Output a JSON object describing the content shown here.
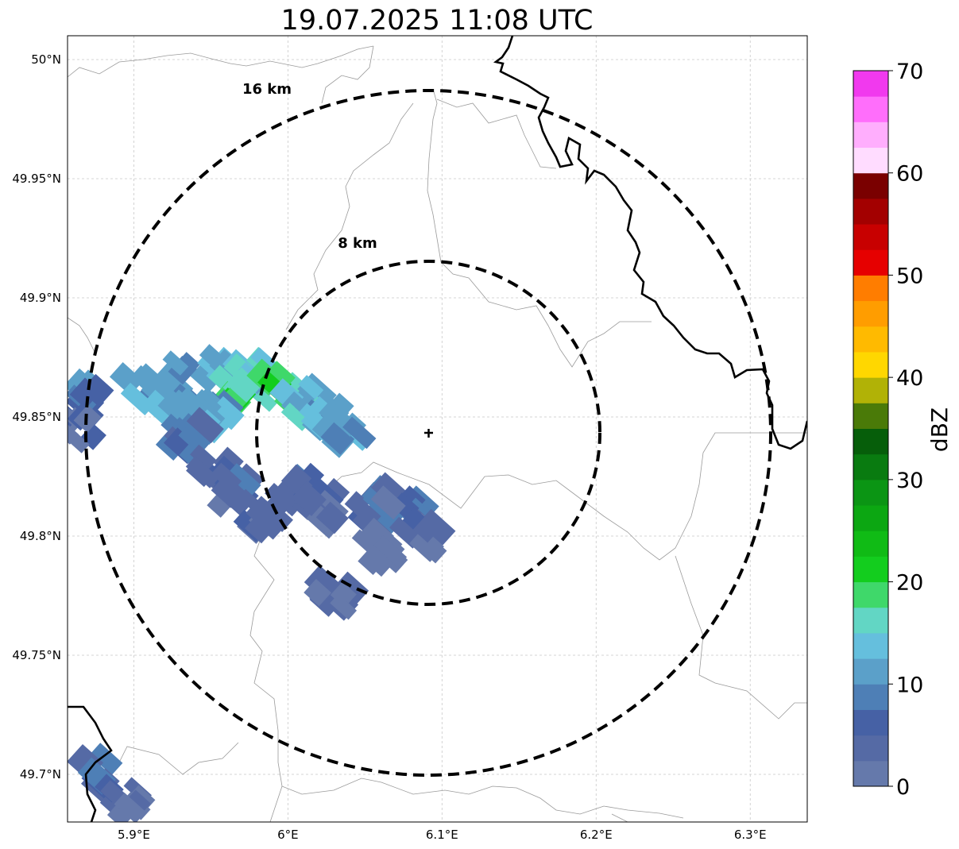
{
  "title": "19.07.2025 11:08 UTC",
  "map": {
    "lon_range": [
      5.857,
      6.337
    ],
    "lat_range": [
      49.68,
      50.01
    ],
    "lon_ticks": [
      {
        "value": 5.9,
        "label": "5.9°E"
      },
      {
        "value": 6.0,
        "label": "6°E"
      },
      {
        "value": 6.1,
        "label": "6.1°E"
      },
      {
        "value": 6.2,
        "label": "6.2°E"
      },
      {
        "value": 6.3,
        "label": "6.3°E"
      }
    ],
    "lat_ticks": [
      {
        "value": 50.0,
        "label": "50°N"
      },
      {
        "value": 49.95,
        "label": "49.95°N"
      },
      {
        "value": 49.9,
        "label": "49.9°N"
      },
      {
        "value": 49.85,
        "label": "49.85°N"
      },
      {
        "value": 49.8,
        "label": "49.8°N"
      },
      {
        "value": 49.75,
        "label": "49.75°N"
      },
      {
        "value": 49.7,
        "label": "49.7°N"
      }
    ],
    "grid": true,
    "radar_site": {
      "lon": 6.0955,
      "lat": 49.8435,
      "marker": "plus-icon"
    },
    "range_rings": [
      {
        "radius_km": 16,
        "label": "16 km"
      },
      {
        "radius_km": 8,
        "label": "8 km"
      }
    ]
  },
  "colorbar": {
    "label": "dBZ",
    "ticks": [
      "0",
      "10",
      "20",
      "30",
      "40",
      "50",
      "60",
      "70"
    ],
    "colors": [
      "#6579ab",
      "#556aa5",
      "#4661a5",
      "#4e7fb6",
      "#5ba0c9",
      "#65bfdd",
      "#62d6c4",
      "#3fd86a",
      "#13cd1e",
      "#10bb15",
      "#0ca712",
      "#0b9514",
      "#097b10",
      "#065e0a",
      "#4a7a08",
      "#b1b206",
      "#ffd700",
      "#ffba00",
      "#ff9d00",
      "#ff7d00",
      "#e60000",
      "#c80000",
      "#a30000",
      "#7a0000",
      "#ffdcff",
      "#ffaefd",
      "#ff6efb",
      "#f139ee"
    ]
  },
  "chart_data": {
    "type": "heatmap",
    "title": "19.07.2025 11:08 UTC",
    "variable": "dBZ",
    "range": [
      0,
      70
    ],
    "echo_cells": [
      {
        "lon": 5.872,
        "lat": 49.858,
        "dbz": 9
      },
      {
        "lon": 5.905,
        "lat": 49.86,
        "dbz": 12
      },
      {
        "lon": 5.935,
        "lat": 49.866,
        "dbz": 10
      },
      {
        "lon": 5.96,
        "lat": 49.87,
        "dbz": 14
      },
      {
        "lon": 5.985,
        "lat": 49.867,
        "dbz": 14
      },
      {
        "lon": 5.975,
        "lat": 49.861,
        "dbz": 18
      },
      {
        "lon": 5.995,
        "lat": 49.862,
        "dbz": 19
      },
      {
        "lon": 6.01,
        "lat": 49.856,
        "dbz": 15
      },
      {
        "lon": 6.025,
        "lat": 49.85,
        "dbz": 12
      },
      {
        "lon": 6.035,
        "lat": 49.845,
        "dbz": 11
      },
      {
        "lon": 5.95,
        "lat": 49.849,
        "dbz": 11
      },
      {
        "lon": 5.94,
        "lat": 49.851,
        "dbz": 13
      },
      {
        "lon": 5.935,
        "lat": 49.84,
        "dbz": 7
      },
      {
        "lon": 5.95,
        "lat": 49.828,
        "dbz": 6
      },
      {
        "lon": 5.965,
        "lat": 49.82,
        "dbz": 5
      },
      {
        "lon": 5.985,
        "lat": 49.808,
        "dbz": 3
      },
      {
        "lon": 6.005,
        "lat": 49.82,
        "dbz": 5
      },
      {
        "lon": 6.02,
        "lat": 49.812,
        "dbz": 4
      },
      {
        "lon": 6.055,
        "lat": 49.81,
        "dbz": 6
      },
      {
        "lon": 6.075,
        "lat": 49.813,
        "dbz": 5
      },
      {
        "lon": 6.085,
        "lat": 49.798,
        "dbz": 3
      },
      {
        "lon": 6.058,
        "lat": 49.794,
        "dbz": 2
      },
      {
        "lon": 6.031,
        "lat": 49.776,
        "dbz": 2
      },
      {
        "lon": 5.875,
        "lat": 49.7,
        "dbz": 6
      },
      {
        "lon": 5.895,
        "lat": 49.688,
        "dbz": 4
      },
      {
        "lon": 5.862,
        "lat": 49.845,
        "dbz": 3
      }
    ]
  }
}
